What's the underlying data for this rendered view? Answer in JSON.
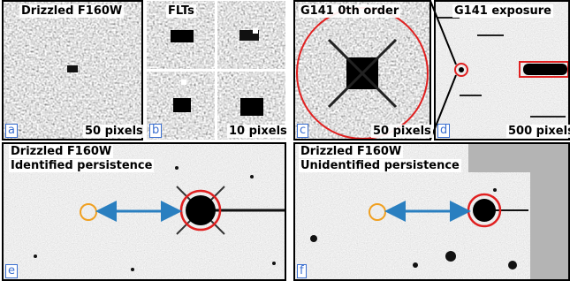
{
  "panels": [
    {
      "label": "a",
      "title": "Drizzled F160W",
      "scale": "50 pixels"
    },
    {
      "label": "b",
      "title": "FLTs",
      "scale": "10 pixels"
    },
    {
      "label": "c",
      "title": "G141 0th order",
      "scale": "50 pixels"
    },
    {
      "label": "d",
      "title": "G141 exposure",
      "scale": "500 pixels"
    },
    {
      "label": "e",
      "title": "Drizzled F160W",
      "subtitle": "Identified persistence"
    },
    {
      "label": "f",
      "title": "Drizzled F160W",
      "subtitle": "Unidentified persistence"
    }
  ]
}
